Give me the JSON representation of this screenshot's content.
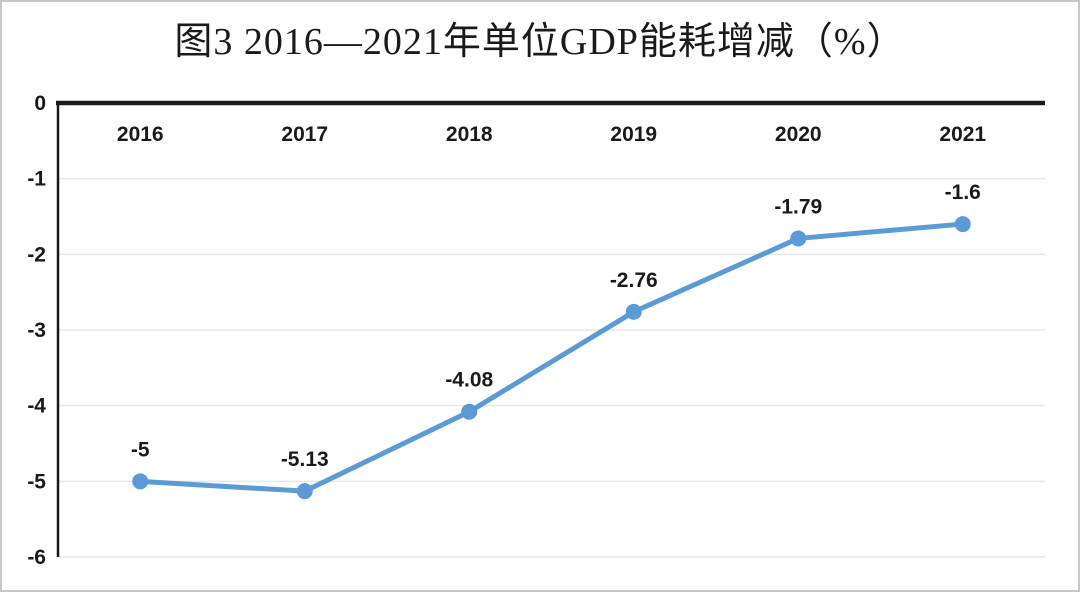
{
  "title": "图3 2016—2021年单位GDP能耗增减（%）",
  "chart_data": {
    "type": "line",
    "title": "图3 2016—2021年单位GDP能耗增减（%）",
    "categories": [
      "2016",
      "2017",
      "2018",
      "2019",
      "2020",
      "2021"
    ],
    "series": [
      {
        "name": "单位GDP能耗增减",
        "values": [
          -5,
          -5.13,
          -4.08,
          -2.76,
          -1.79,
          -1.6
        ]
      }
    ],
    "data_labels": [
      "-5",
      "-5.13",
      "-4.08",
      "-2.76",
      "-1.79",
      "-1.6"
    ],
    "y_ticks": [
      0,
      -1,
      -2,
      -3,
      -4,
      -5,
      -6
    ],
    "ylim": [
      -6,
      0
    ],
    "xlabel": "",
    "ylabel": "",
    "grid": "on",
    "legend": "none",
    "colors": {
      "line": "#5b9bd5",
      "marker": "#5b9bd5",
      "grid": "#e7e7e7",
      "axis": "#1a1a1a",
      "text": "#1a1a1a"
    }
  }
}
